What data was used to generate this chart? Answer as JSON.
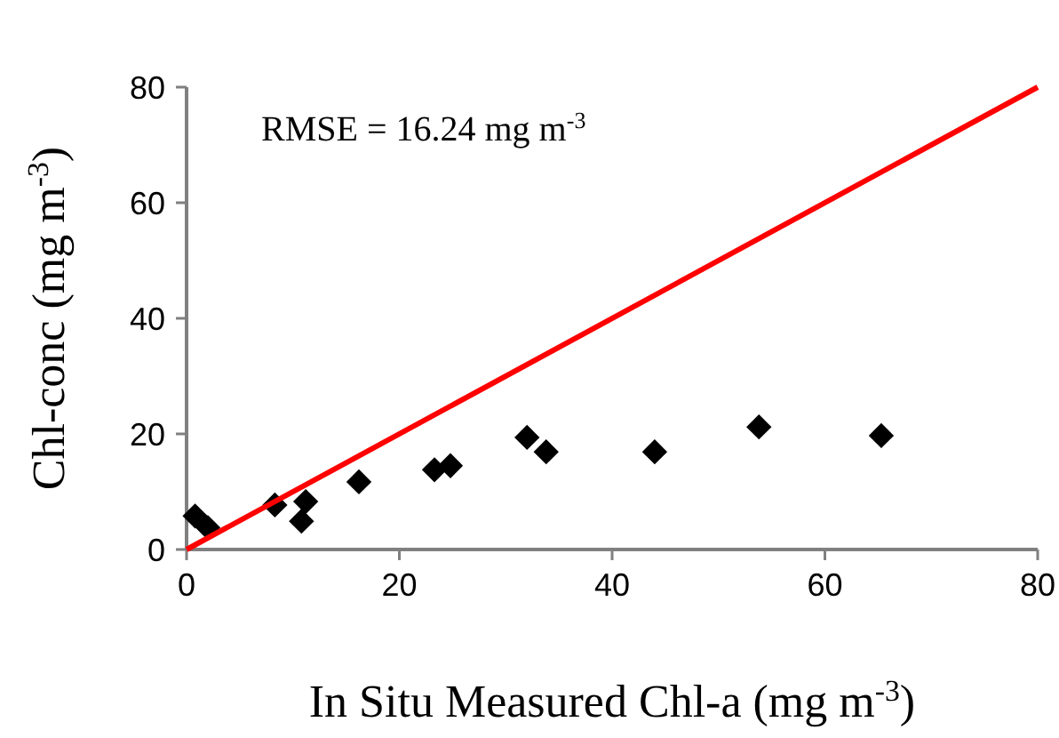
{
  "chart_data": {
    "type": "scatter",
    "xlabel": "In Situ Measured Chl-a (mg m$^{-3}$)",
    "ylabel": "Chl-conc (mg m$^{-3}$)",
    "annotations": [
      "RMSE = 16.24 mg m$^{-3}$"
    ],
    "xlim": [
      0,
      80
    ],
    "ylim": [
      0,
      80
    ],
    "xticks": [
      0,
      20,
      40,
      60,
      80
    ],
    "yticks": [
      0,
      20,
      40,
      60,
      80
    ],
    "grid": false,
    "marker": "diamond",
    "series": [
      {
        "color": "#000000",
        "x": [
          0.8,
          2,
          8.3,
          10.8,
          11.2,
          16.2,
          23.3,
          24.8,
          32,
          33.8,
          44,
          53.8,
          65.3
        ],
        "values": [
          5.8,
          3.8,
          7.7,
          4.9,
          8.3,
          11.7,
          13.8,
          14.5,
          19.4,
          16.9,
          16.9,
          21.2,
          19.7
        ]
      },
      {
        "type": "line",
        "color": "#ff0000",
        "x": [
          0,
          80
        ],
        "values": [
          0,
          80
        ],
        "line_style": "solid",
        "marker": "none"
      }
    ]
  }
}
